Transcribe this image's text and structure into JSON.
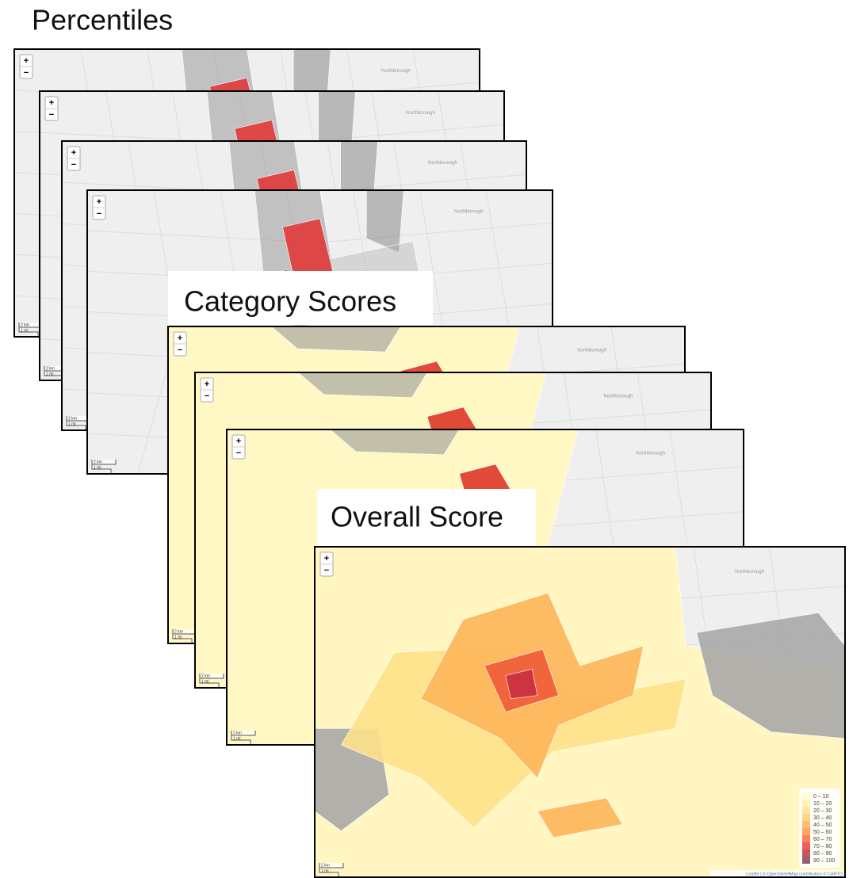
{
  "groups": [
    {
      "title": "Percentiles",
      "maps": [
        {
          "zoom_in": "+",
          "zoom_out": "−",
          "place": "Northborough",
          "scale_km": "2 km",
          "scale_mi": "1 mi"
        },
        {
          "zoom_in": "+",
          "zoom_out": "−",
          "place": "Northborough",
          "scale_km": "2 km",
          "scale_mi": "1 mi"
        },
        {
          "zoom_in": "+",
          "zoom_out": "−",
          "place": "Northborough",
          "scale_km": "2 km",
          "scale_mi": "1 mi"
        },
        {
          "zoom_in": "+",
          "zoom_out": "−",
          "place": "Northborough",
          "scale_km": "2 km",
          "scale_mi": "1 mi"
        }
      ]
    },
    {
      "title": "Category Scores",
      "maps": [
        {
          "zoom_in": "+",
          "zoom_out": "−",
          "place": "Northborough",
          "scale_km": "2 km",
          "scale_mi": "1 mi"
        },
        {
          "zoom_in": "+",
          "zoom_out": "−",
          "place": "Northborough",
          "scale_km": "2 km",
          "scale_mi": "1 mi"
        },
        {
          "zoom_in": "+",
          "zoom_out": "−",
          "place": "Northborough",
          "scale_km": "2 km",
          "scale_mi": "1 mi"
        }
      ]
    },
    {
      "title": "Overall Score",
      "maps": [
        {
          "zoom_in": "+",
          "zoom_out": "−",
          "place": "Northborough",
          "scale_km": "2 km",
          "scale_mi": "1 mi",
          "legend": [
            {
              "label": "0 – 10",
              "color": "#ffffcc"
            },
            {
              "label": "10 – 20",
              "color": "#fff3a8"
            },
            {
              "label": "20 – 30",
              "color": "#fee28a"
            },
            {
              "label": "30 – 40",
              "color": "#fecb6a"
            },
            {
              "label": "40 – 50",
              "color": "#feae50"
            },
            {
              "label": "50 – 60",
              "color": "#fd8d40"
            },
            {
              "label": "60 – 70",
              "color": "#f7623a"
            },
            {
              "label": "70 – 80",
              "color": "#e43b34"
            },
            {
              "label": "80 – 90",
              "color": "#c4253a"
            },
            {
              "label": "90 – 100",
              "color": "#7a3a4a"
            }
          ],
          "attribution": "Leaflet | © OpenStreetMap contributors © CARTO"
        }
      ]
    }
  ]
}
